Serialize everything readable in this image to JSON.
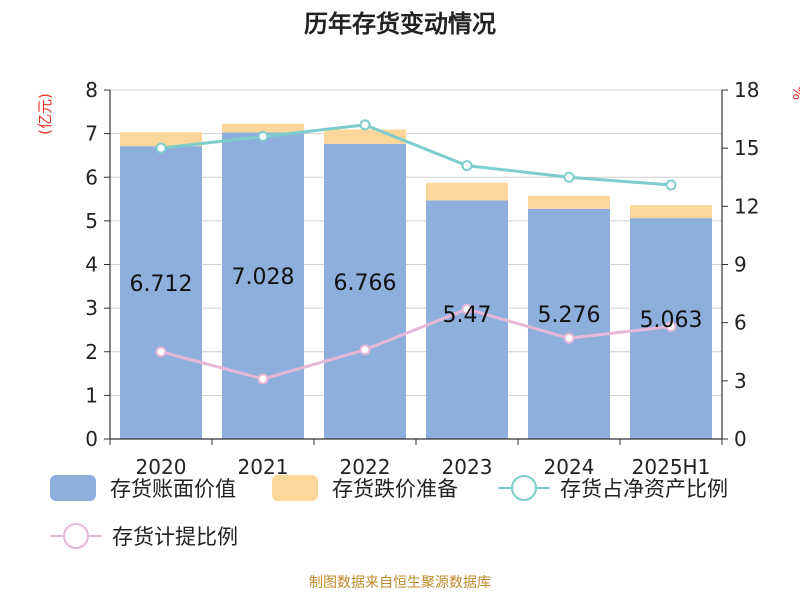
{
  "chart_data": {
    "type": "bar",
    "title": "历年存货变动情况",
    "y_left_unit": "(亿元)",
    "y_right_unit": "%",
    "categories": [
      "2020",
      "2021",
      "2022",
      "2023",
      "2024",
      "2025H1"
    ],
    "y_left_ticks": [
      "0",
      "1",
      "2",
      "3",
      "4",
      "5",
      "6",
      "7",
      "8"
    ],
    "y_right_ticks": [
      "0",
      "3",
      "6",
      "9",
      "12",
      "15",
      "18"
    ],
    "ylim_left": [
      0,
      8
    ],
    "ylim_right": [
      0,
      18
    ],
    "grid": true,
    "legend_position": "bottom",
    "series": [
      {
        "name": "存货账面价值",
        "kind": "bar",
        "axis": "left",
        "color": "#8eaedb",
        "values": [
          6.712,
          7.028,
          6.766,
          5.47,
          5.276,
          5.063
        ],
        "labels": [
          "6.712",
          "7.028",
          "6.766",
          "5.47",
          "5.276",
          "5.063"
        ]
      },
      {
        "name": "存货跌价准备",
        "kind": "bar-stacked",
        "axis": "left",
        "color": "#fdd699",
        "values": [
          0.32,
          0.2,
          0.33,
          0.4,
          0.3,
          0.3
        ]
      },
      {
        "name": "存货占净资产比例",
        "kind": "line",
        "axis": "right",
        "color": "#7dcdcc",
        "values": [
          15.0,
          15.6,
          16.2,
          14.1,
          13.5,
          13.1
        ]
      },
      {
        "name": "存货计提比例",
        "kind": "line",
        "axis": "right",
        "color": "#e7b7d8",
        "values": [
          4.5,
          3.1,
          4.6,
          6.7,
          5.2,
          5.8
        ]
      }
    ]
  },
  "source": "制图数据来自恒生聚源数据库"
}
